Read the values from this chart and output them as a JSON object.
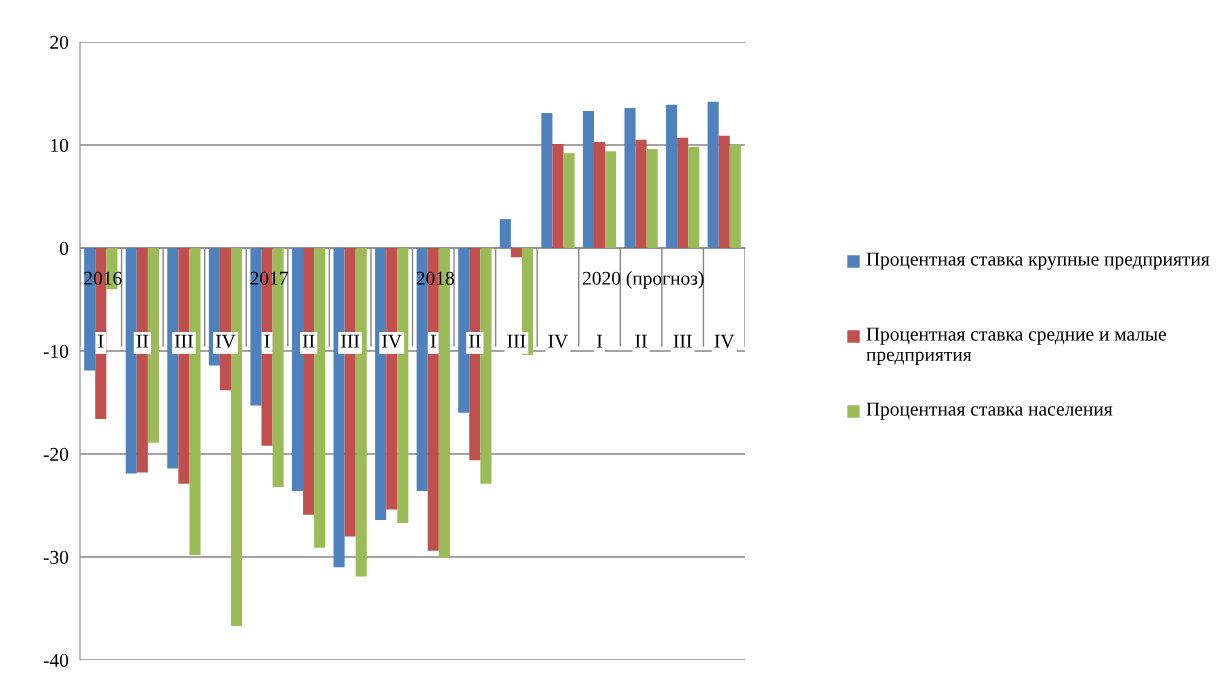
{
  "chart_data": {
    "type": "bar",
    "categories": [
      "I",
      "II",
      "III",
      "IV",
      "I",
      "II",
      "III",
      "IV",
      "I",
      "II",
      "III",
      "IV",
      "I",
      "II",
      "III",
      "IV"
    ],
    "annotations": [
      "2016",
      "2017",
      "2018",
      "2020 (прогноз)"
    ],
    "series": [
      {
        "name": "Процентная ставка крупные предприятия",
        "color": "#4f81bd",
        "values": [
          -11.9,
          -21.9,
          -21.4,
          -11.4,
          -15.3,
          -23.6,
          -31.0,
          -26.4,
          -23.6,
          -16.0,
          2.8,
          13.1,
          13.3,
          13.6,
          13.9,
          14.2
        ]
      },
      {
        "name": "Процентная ставка средние и малые предприятия",
        "color": "#c0504d",
        "values": [
          -16.6,
          -21.8,
          -22.9,
          -13.8,
          -19.2,
          -25.9,
          -28.0,
          -25.4,
          -29.4,
          -20.6,
          -0.9,
          10.1,
          10.3,
          10.5,
          10.7,
          10.9
        ]
      },
      {
        "name": "Процентная ставка населения",
        "color": "#9bbb59",
        "values": [
          -4.0,
          -18.9,
          -29.8,
          -36.7,
          -23.2,
          -29.1,
          -31.9,
          -26.7,
          -30.1,
          -22.9,
          -10.4,
          9.2,
          9.4,
          9.6,
          9.8,
          10.0
        ]
      }
    ],
    "ylim": [
      -40,
      20
    ],
    "yticks": [
      -40,
      -30,
      -20,
      -10,
      0,
      10,
      20
    ],
    "grid": "y",
    "legend": "right"
  }
}
